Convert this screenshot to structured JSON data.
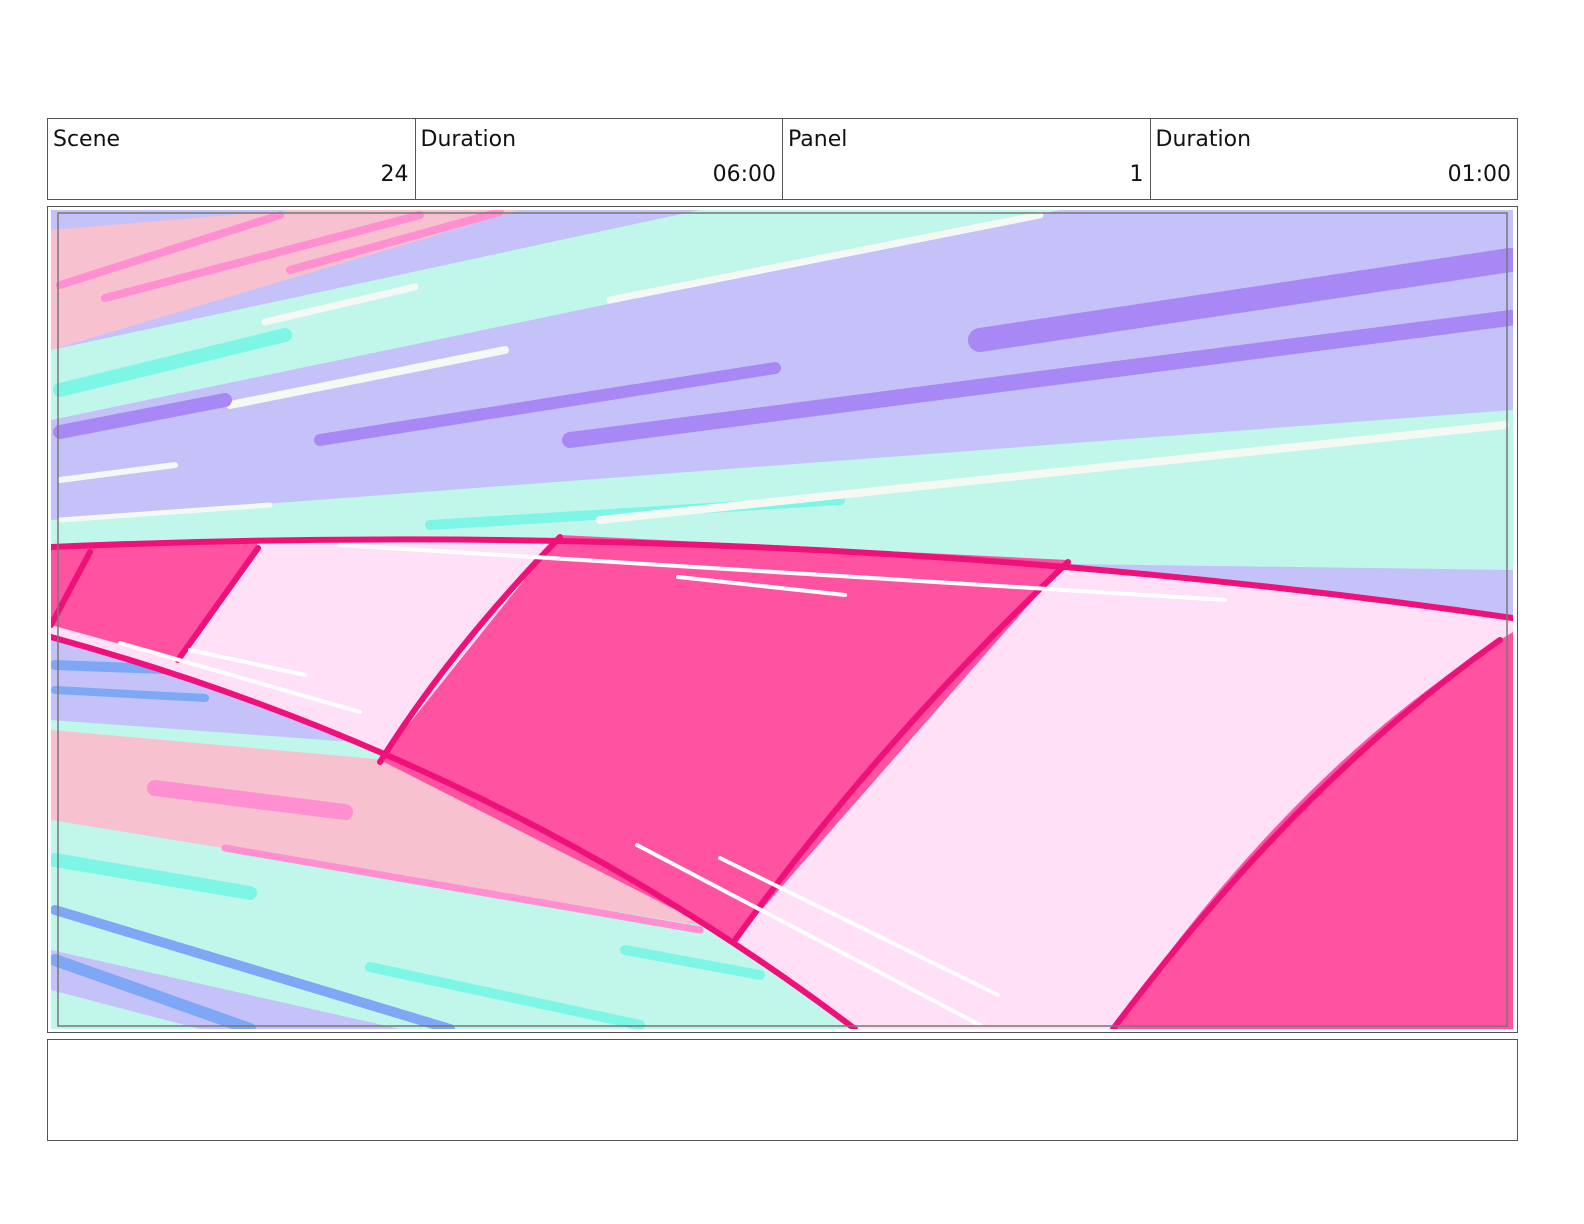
{
  "header": {
    "cells": [
      {
        "label": "Scene",
        "value": "24"
      },
      {
        "label": "Duration",
        "value": "06:00"
      },
      {
        "label": "Panel",
        "value": "1"
      },
      {
        "label": "Duration",
        "value": "01:00"
      }
    ]
  }
}
